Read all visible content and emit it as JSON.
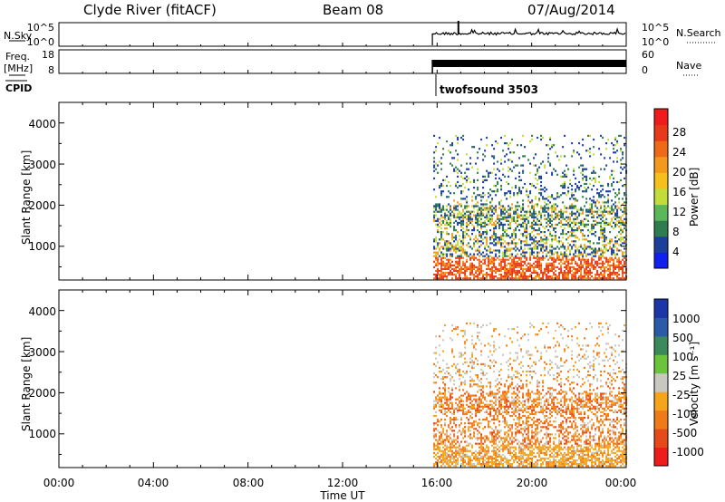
{
  "header": {
    "station": "Clyde River (fitACF)",
    "beam": "Beam 08",
    "date": "07/Aug/2014"
  },
  "noise_panel": {
    "left_label": "N.Sky",
    "left_ticks": [
      "10^5",
      "10^0"
    ],
    "right_ticks": [
      "10^5",
      "10^0"
    ],
    "right_label": "N.Search"
  },
  "freq_panel": {
    "left_label_1": "Freq.",
    "left_label_2": "[MHz]",
    "left_ticks": [
      "18",
      "8"
    ],
    "right_ticks": [
      "60",
      "0"
    ],
    "right_label": "Nave"
  },
  "cpid": {
    "label": "CPID",
    "program": "twofsound 3503"
  },
  "chart_data": [
    {
      "type": "heatmap",
      "title": "",
      "ylabel": "Slant Range [km]",
      "xlabel": "",
      "xlim": [
        0,
        24
      ],
      "ylim": [
        180,
        4500
      ],
      "ytick_labels": [
        "1000",
        "2000",
        "3000",
        "4000"
      ],
      "colorbar_label": "Power [dB]",
      "colorbar_ticks": [
        "4",
        "8",
        "12",
        "16",
        "20",
        "24",
        "28"
      ],
      "colorbar_colors": [
        "#1020ee",
        "#1c3f9c",
        "#2f7d4f",
        "#5bb85a",
        "#c4dc38",
        "#f5c01c",
        "#f39a1c",
        "#ee6a18",
        "#e63a1a",
        "#ee1c1c"
      ],
      "data_start_hour": 15.8,
      "data_end_hour": 24.0
    },
    {
      "type": "heatmap",
      "title": "",
      "ylabel": "Slant Range [km]",
      "xlabel": "Time UT",
      "xlim": [
        0,
        24
      ],
      "ylim": [
        180,
        4500
      ],
      "xtick_labels": [
        "00:00",
        "04:00",
        "08:00",
        "12:00",
        "16:00",
        "20:00",
        "00:00"
      ],
      "ytick_labels": [
        "1000",
        "2000",
        "3000",
        "4000"
      ],
      "colorbar_label": "Velocity [m s⁻¹]",
      "colorbar_ticks": [
        "1000",
        "500",
        "100",
        "25",
        "-25",
        "-100",
        "-500",
        "-1000"
      ],
      "colorbar_colors": [
        "#1c36a8",
        "#2a5aa8",
        "#3c8a5c",
        "#6cc43c",
        "#c8c8c0",
        "#f6a41c",
        "#ee7a1a",
        "#e64a1a",
        "#ee1c1c"
      ],
      "data_start_hour": 15.8,
      "data_end_hour": 24.0
    }
  ]
}
